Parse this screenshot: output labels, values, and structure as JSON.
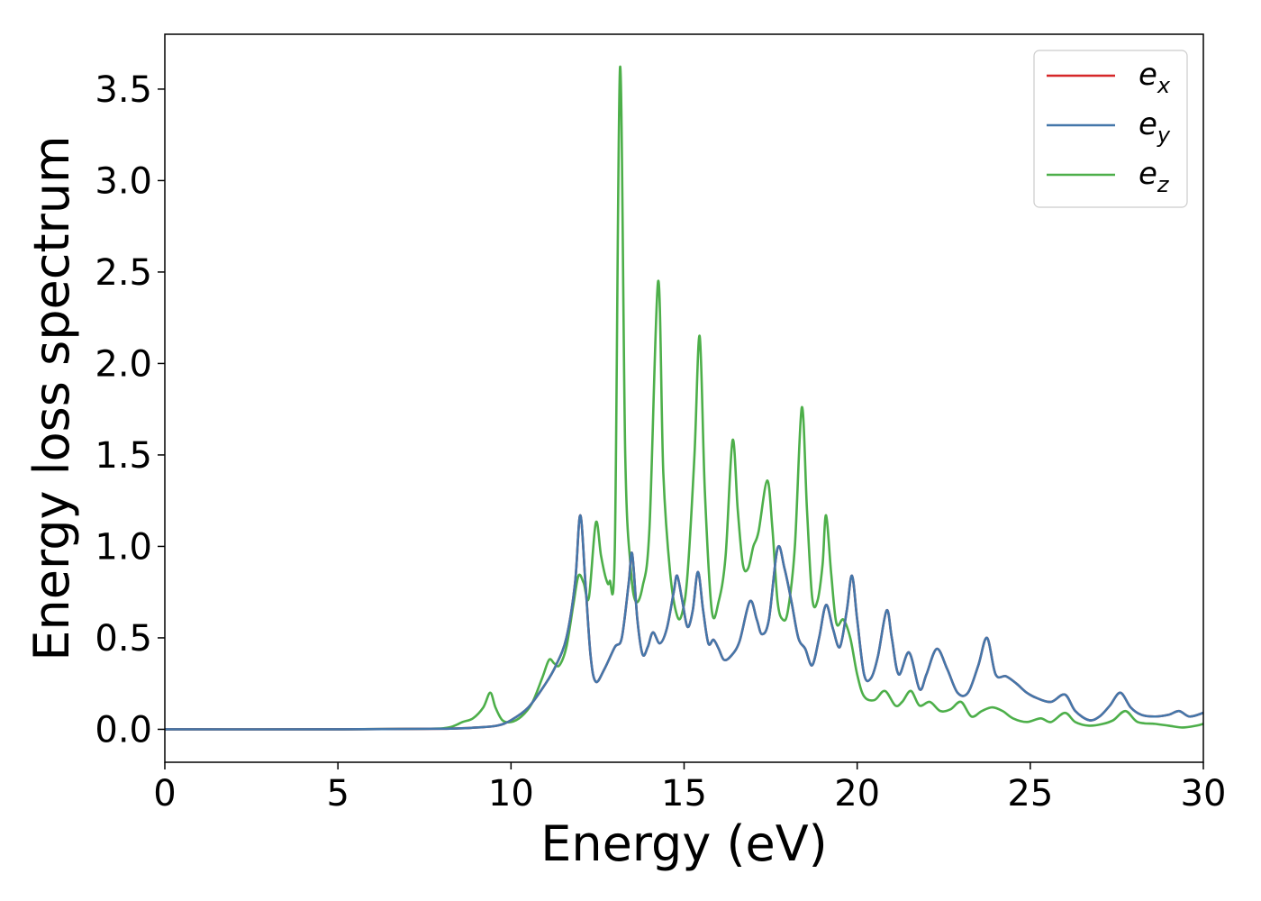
{
  "chart_data": {
    "type": "line",
    "title": "",
    "xlabel": "Energy (eV)",
    "ylabel": "Energy loss spectrum",
    "xlim": [
      0,
      30
    ],
    "ylim": [
      -0.18,
      3.8
    ],
    "x_ticks": [
      "0",
      "5",
      "10",
      "15",
      "20",
      "25",
      "30"
    ],
    "y_ticks": [
      "0.0",
      "0.5",
      "1.0",
      "1.5",
      "2.0",
      "2.5",
      "3.0",
      "3.5"
    ],
    "grid": false,
    "legend_position": "top-right",
    "legend": [
      {
        "base": "e",
        "sub": "x",
        "color": "#d62728"
      },
      {
        "base": "e",
        "sub": "y",
        "color": "#4477aa"
      },
      {
        "base": "e",
        "sub": "z",
        "color": "#4daf4a"
      }
    ],
    "series": [
      {
        "name": "e_x",
        "color": "#d62728",
        "points": [
          [
            0,
            0
          ],
          [
            5,
            0
          ],
          [
            8,
            0.003
          ],
          [
            9,
            0.01
          ],
          [
            9.6,
            0.02
          ],
          [
            10,
            0.05
          ],
          [
            10.5,
            0.12
          ],
          [
            11,
            0.25
          ],
          [
            11.3,
            0.35
          ],
          [
            11.6,
            0.5
          ],
          [
            11.85,
            0.8
          ],
          [
            12.0,
            1.17
          ],
          [
            12.15,
            0.8
          ],
          [
            12.3,
            0.4
          ],
          [
            12.45,
            0.26
          ],
          [
            12.7,
            0.33
          ],
          [
            13.0,
            0.45
          ],
          [
            13.2,
            0.5
          ],
          [
            13.4,
            0.8
          ],
          [
            13.5,
            0.96
          ],
          [
            13.65,
            0.6
          ],
          [
            13.8,
            0.41
          ],
          [
            13.95,
            0.45
          ],
          [
            14.1,
            0.53
          ],
          [
            14.3,
            0.47
          ],
          [
            14.5,
            0.55
          ],
          [
            14.7,
            0.75
          ],
          [
            14.8,
            0.84
          ],
          [
            14.95,
            0.7
          ],
          [
            15.1,
            0.56
          ],
          [
            15.25,
            0.65
          ],
          [
            15.4,
            0.86
          ],
          [
            15.55,
            0.65
          ],
          [
            15.7,
            0.47
          ],
          [
            15.85,
            0.49
          ],
          [
            16.0,
            0.44
          ],
          [
            16.15,
            0.38
          ],
          [
            16.35,
            0.4
          ],
          [
            16.6,
            0.48
          ],
          [
            16.9,
            0.7
          ],
          [
            17.1,
            0.6
          ],
          [
            17.25,
            0.52
          ],
          [
            17.45,
            0.6
          ],
          [
            17.7,
            0.99
          ],
          [
            17.9,
            0.88
          ],
          [
            18.1,
            0.7
          ],
          [
            18.3,
            0.5
          ],
          [
            18.5,
            0.44
          ],
          [
            18.7,
            0.35
          ],
          [
            18.9,
            0.5
          ],
          [
            19.1,
            0.68
          ],
          [
            19.3,
            0.55
          ],
          [
            19.5,
            0.45
          ],
          [
            19.7,
            0.65
          ],
          [
            19.85,
            0.84
          ],
          [
            20.0,
            0.6
          ],
          [
            20.2,
            0.3
          ],
          [
            20.4,
            0.28
          ],
          [
            20.6,
            0.4
          ],
          [
            20.85,
            0.65
          ],
          [
            21.0,
            0.5
          ],
          [
            21.2,
            0.3
          ],
          [
            21.5,
            0.42
          ],
          [
            21.8,
            0.22
          ],
          [
            22.0,
            0.3
          ],
          [
            22.3,
            0.44
          ],
          [
            22.6,
            0.33
          ],
          [
            22.9,
            0.2
          ],
          [
            23.2,
            0.2
          ],
          [
            23.5,
            0.35
          ],
          [
            23.75,
            0.5
          ],
          [
            24.0,
            0.3
          ],
          [
            24.3,
            0.29
          ],
          [
            24.6,
            0.25
          ],
          [
            24.9,
            0.2
          ],
          [
            25.2,
            0.17
          ],
          [
            25.6,
            0.15
          ],
          [
            26.0,
            0.19
          ],
          [
            26.3,
            0.1
          ],
          [
            26.7,
            0.05
          ],
          [
            27.0,
            0.07
          ],
          [
            27.3,
            0.13
          ],
          [
            27.6,
            0.2
          ],
          [
            27.9,
            0.12
          ],
          [
            28.2,
            0.08
          ],
          [
            28.6,
            0.07
          ],
          [
            29.0,
            0.08
          ],
          [
            29.3,
            0.1
          ],
          [
            29.6,
            0.07
          ],
          [
            30,
            0.09
          ]
        ]
      },
      {
        "name": "e_y",
        "color": "#4477aa",
        "points": [
          [
            0,
            0
          ],
          [
            5,
            0
          ],
          [
            8,
            0.003
          ],
          [
            9,
            0.01
          ],
          [
            9.6,
            0.02
          ],
          [
            10,
            0.05
          ],
          [
            10.5,
            0.12
          ],
          [
            11,
            0.25
          ],
          [
            11.3,
            0.35
          ],
          [
            11.6,
            0.5
          ],
          [
            11.85,
            0.8
          ],
          [
            12.0,
            1.17
          ],
          [
            12.15,
            0.8
          ],
          [
            12.3,
            0.4
          ],
          [
            12.45,
            0.26
          ],
          [
            12.7,
            0.33
          ],
          [
            13.0,
            0.45
          ],
          [
            13.2,
            0.5
          ],
          [
            13.4,
            0.8
          ],
          [
            13.5,
            0.96
          ],
          [
            13.65,
            0.6
          ],
          [
            13.8,
            0.41
          ],
          [
            13.95,
            0.45
          ],
          [
            14.1,
            0.53
          ],
          [
            14.3,
            0.47
          ],
          [
            14.5,
            0.55
          ],
          [
            14.7,
            0.75
          ],
          [
            14.8,
            0.84
          ],
          [
            14.95,
            0.7
          ],
          [
            15.1,
            0.56
          ],
          [
            15.25,
            0.65
          ],
          [
            15.4,
            0.86
          ],
          [
            15.55,
            0.65
          ],
          [
            15.7,
            0.47
          ],
          [
            15.85,
            0.49
          ],
          [
            16.0,
            0.44
          ],
          [
            16.15,
            0.38
          ],
          [
            16.35,
            0.4
          ],
          [
            16.6,
            0.48
          ],
          [
            16.9,
            0.7
          ],
          [
            17.1,
            0.6
          ],
          [
            17.25,
            0.52
          ],
          [
            17.45,
            0.6
          ],
          [
            17.7,
            0.99
          ],
          [
            17.9,
            0.88
          ],
          [
            18.1,
            0.7
          ],
          [
            18.3,
            0.5
          ],
          [
            18.5,
            0.44
          ],
          [
            18.7,
            0.35
          ],
          [
            18.9,
            0.5
          ],
          [
            19.1,
            0.68
          ],
          [
            19.3,
            0.55
          ],
          [
            19.5,
            0.45
          ],
          [
            19.7,
            0.65
          ],
          [
            19.85,
            0.84
          ],
          [
            20.0,
            0.6
          ],
          [
            20.2,
            0.3
          ],
          [
            20.4,
            0.28
          ],
          [
            20.6,
            0.4
          ],
          [
            20.85,
            0.65
          ],
          [
            21.0,
            0.5
          ],
          [
            21.2,
            0.3
          ],
          [
            21.5,
            0.42
          ],
          [
            21.8,
            0.22
          ],
          [
            22.0,
            0.3
          ],
          [
            22.3,
            0.44
          ],
          [
            22.6,
            0.33
          ],
          [
            22.9,
            0.2
          ],
          [
            23.2,
            0.2
          ],
          [
            23.5,
            0.35
          ],
          [
            23.75,
            0.5
          ],
          [
            24.0,
            0.3
          ],
          [
            24.3,
            0.29
          ],
          [
            24.6,
            0.25
          ],
          [
            24.9,
            0.2
          ],
          [
            25.2,
            0.17
          ],
          [
            25.6,
            0.15
          ],
          [
            26.0,
            0.19
          ],
          [
            26.3,
            0.1
          ],
          [
            26.7,
            0.05
          ],
          [
            27.0,
            0.07
          ],
          [
            27.3,
            0.13
          ],
          [
            27.6,
            0.2
          ],
          [
            27.9,
            0.12
          ],
          [
            28.2,
            0.08
          ],
          [
            28.6,
            0.07
          ],
          [
            29.0,
            0.08
          ],
          [
            29.3,
            0.1
          ],
          [
            29.6,
            0.07
          ],
          [
            30,
            0.09
          ]
        ]
      },
      {
        "name": "e_z",
        "color": "#4daf4a",
        "points": [
          [
            0,
            0
          ],
          [
            5,
            0
          ],
          [
            7.5,
            0.003
          ],
          [
            8.2,
            0.01
          ],
          [
            8.6,
            0.04
          ],
          [
            8.9,
            0.06
          ],
          [
            9.2,
            0.12
          ],
          [
            9.4,
            0.2
          ],
          [
            9.55,
            0.12
          ],
          [
            9.75,
            0.05
          ],
          [
            10.0,
            0.04
          ],
          [
            10.3,
            0.07
          ],
          [
            10.6,
            0.14
          ],
          [
            10.9,
            0.28
          ],
          [
            11.1,
            0.38
          ],
          [
            11.25,
            0.36
          ],
          [
            11.4,
            0.35
          ],
          [
            11.6,
            0.45
          ],
          [
            11.8,
            0.68
          ],
          [
            11.95,
            0.84
          ],
          [
            12.1,
            0.8
          ],
          [
            12.25,
            0.72
          ],
          [
            12.45,
            1.13
          ],
          [
            12.6,
            0.95
          ],
          [
            12.75,
            0.82
          ],
          [
            12.85,
            0.81
          ],
          [
            13.0,
            1.0
          ],
          [
            13.15,
            3.62
          ],
          [
            13.3,
            1.5
          ],
          [
            13.45,
            0.9
          ],
          [
            13.6,
            0.7
          ],
          [
            13.8,
            0.78
          ],
          [
            14.0,
            1.1
          ],
          [
            14.25,
            2.45
          ],
          [
            14.4,
            1.4
          ],
          [
            14.6,
            0.85
          ],
          [
            14.8,
            0.62
          ],
          [
            14.95,
            0.64
          ],
          [
            15.1,
            0.85
          ],
          [
            15.3,
            1.5
          ],
          [
            15.45,
            2.15
          ],
          [
            15.6,
            1.3
          ],
          [
            15.8,
            0.65
          ],
          [
            16.0,
            0.7
          ],
          [
            16.2,
            0.95
          ],
          [
            16.4,
            1.58
          ],
          [
            16.55,
            1.2
          ],
          [
            16.7,
            0.9
          ],
          [
            16.85,
            0.88
          ],
          [
            17.0,
            1.0
          ],
          [
            17.15,
            1.08
          ],
          [
            17.4,
            1.36
          ],
          [
            17.55,
            1.1
          ],
          [
            17.7,
            0.7
          ],
          [
            17.85,
            0.6
          ],
          [
            18.0,
            0.65
          ],
          [
            18.2,
            1.0
          ],
          [
            18.4,
            1.76
          ],
          [
            18.55,
            1.2
          ],
          [
            18.7,
            0.72
          ],
          [
            18.85,
            0.7
          ],
          [
            19.0,
            0.9
          ],
          [
            19.1,
            1.17
          ],
          [
            19.25,
            0.85
          ],
          [
            19.4,
            0.58
          ],
          [
            19.6,
            0.6
          ],
          [
            19.8,
            0.5
          ],
          [
            20.0,
            0.3
          ],
          [
            20.2,
            0.18
          ],
          [
            20.5,
            0.16
          ],
          [
            20.8,
            0.21
          ],
          [
            21.1,
            0.13
          ],
          [
            21.3,
            0.15
          ],
          [
            21.55,
            0.21
          ],
          [
            21.8,
            0.13
          ],
          [
            22.1,
            0.15
          ],
          [
            22.4,
            0.1
          ],
          [
            22.7,
            0.11
          ],
          [
            23.0,
            0.15
          ],
          [
            23.3,
            0.07
          ],
          [
            23.6,
            0.1
          ],
          [
            23.9,
            0.12
          ],
          [
            24.2,
            0.1
          ],
          [
            24.5,
            0.06
          ],
          [
            24.9,
            0.04
          ],
          [
            25.3,
            0.06
          ],
          [
            25.6,
            0.04
          ],
          [
            26.0,
            0.09
          ],
          [
            26.3,
            0.04
          ],
          [
            26.7,
            0.02
          ],
          [
            27.1,
            0.03
          ],
          [
            27.4,
            0.05
          ],
          [
            27.75,
            0.1
          ],
          [
            28.1,
            0.04
          ],
          [
            28.6,
            0.03
          ],
          [
            29.0,
            0.02
          ],
          [
            29.4,
            0.01
          ],
          [
            29.8,
            0.02
          ],
          [
            30,
            0.03
          ]
        ]
      }
    ]
  }
}
